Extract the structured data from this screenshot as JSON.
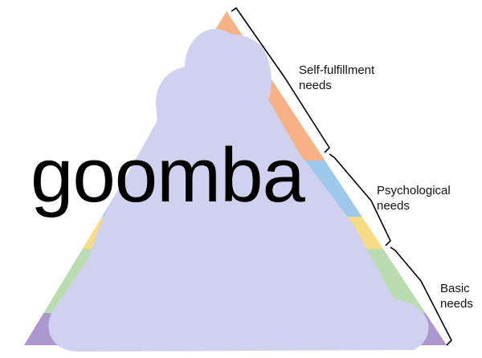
{
  "tiers": [
    {
      "line1": "Self-fulfillment",
      "line2": "needs"
    },
    {
      "line1": "Psychological",
      "line2": "needs"
    },
    {
      "line1": "Basic",
      "line2": "needs"
    }
  ],
  "overlay_text": "goomba",
  "colors": {
    "band_top": "#f6b184",
    "band_blue": "#9ec9ea",
    "band_yellow": "#f7dc86",
    "band_green": "#b9dcb1",
    "band_purple": "#ad97cf",
    "blob": "#cfd1ee",
    "bracket": "#000000"
  }
}
